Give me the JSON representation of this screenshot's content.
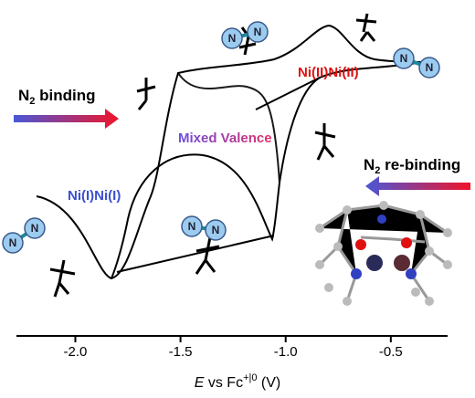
{
  "chart_data": {
    "type": "cv",
    "xlabel": [
      "E",
      " vs Fc",
      "+|0",
      " (V)"
    ],
    "xlim": [
      -2.28,
      -0.23
    ],
    "xticks": [
      {
        "value": -2.0,
        "label": "-2.0"
      },
      {
        "value": -1.5,
        "label": "-1.5"
      },
      {
        "value": -1.0,
        "label": "-1.0"
      },
      {
        "value": -0.5,
        "label": "-0.5"
      }
    ],
    "annotations": {
      "binding": [
        "N",
        "2",
        " binding"
      ],
      "rebinding": [
        "N",
        "2",
        " re-binding"
      ],
      "mixed": "Mixed Valence",
      "low": "Ni(I)Ni(I)",
      "high": "Ni(II)Ni(II)"
    },
    "n2_molecules": [
      [
        "N",
        "N"
      ],
      [
        "N",
        "N"
      ],
      [
        "N",
        "N"
      ],
      [
        "N",
        "N"
      ]
    ]
  }
}
